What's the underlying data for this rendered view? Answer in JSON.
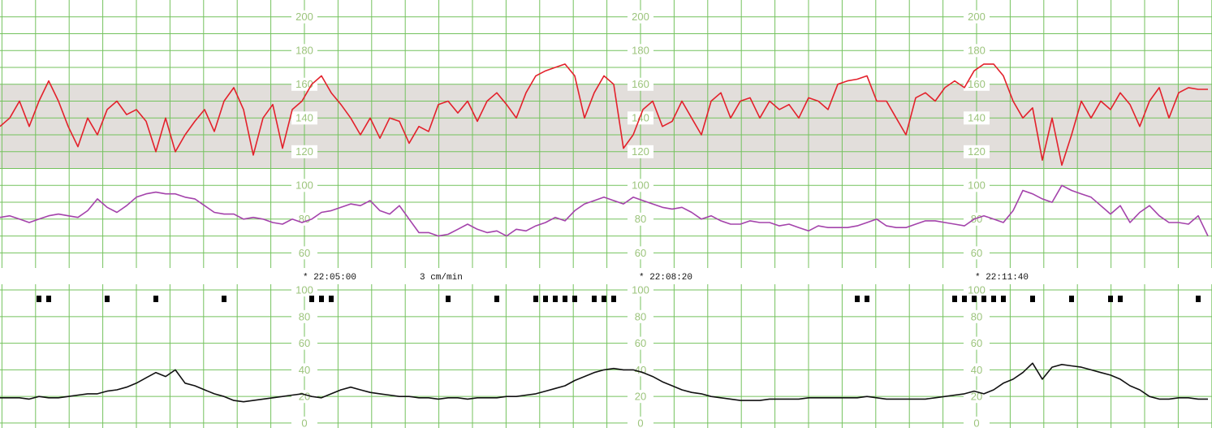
{
  "chart_data": [
    {
      "type": "line",
      "ylim": [
        51,
        210
      ],
      "yticks": [
        60,
        80,
        100,
        120,
        140,
        160,
        180,
        200
      ],
      "grid": true,
      "band": [
        110,
        160
      ],
      "band_color": "#e2dedb",
      "series": [
        {
          "color": "#e3212b",
          "values": [
            135,
            140,
            150,
            135,
            150,
            162,
            150,
            135,
            123,
            140,
            130,
            145,
            150,
            142,
            145,
            138,
            120,
            140,
            120,
            130,
            138,
            145,
            132,
            150,
            158,
            145,
            118,
            140,
            148,
            122,
            145,
            150,
            160,
            165,
            155,
            148,
            140,
            130,
            140,
            128,
            140,
            138,
            125,
            135,
            132,
            148,
            150,
            143,
            150,
            138,
            150,
            155,
            148,
            140,
            155,
            165,
            168,
            170,
            172,
            165,
            140,
            155,
            165,
            160,
            122,
            130,
            145,
            150,
            135,
            138,
            150,
            140,
            130,
            150,
            155,
            140,
            150,
            152,
            140,
            150,
            145,
            148,
            140,
            152,
            150,
            145,
            160,
            162,
            163,
            165,
            150,
            150,
            140,
            130,
            152,
            155,
            150,
            158,
            162,
            158,
            168,
            172,
            172,
            165,
            150,
            140,
            146,
            115,
            140,
            112,
            130,
            150,
            140,
            150,
            145,
            155,
            148,
            135,
            150,
            158,
            140,
            155,
            158,
            157,
            157
          ]
        },
        {
          "color": "#a443ab",
          "values": [
            81,
            82,
            80,
            78,
            80,
            82,
            83,
            82,
            81,
            85,
            92,
            87,
            84,
            88,
            93,
            95,
            96,
            95,
            95,
            93,
            92,
            88,
            84,
            83,
            83,
            80,
            81,
            80,
            78,
            77,
            80,
            78,
            80,
            84,
            85,
            87,
            89,
            88,
            91,
            85,
            83,
            88,
            80,
            72,
            72,
            70,
            71,
            74,
            77,
            74,
            72,
            73,
            70,
            74,
            73,
            76,
            78,
            81,
            79,
            85,
            89,
            91,
            93,
            91,
            89,
            93,
            91,
            89,
            87,
            86,
            87,
            84,
            80,
            82,
            79,
            77,
            77,
            79,
            78,
            78,
            76,
            77,
            75,
            73,
            76,
            75,
            75,
            75,
            76,
            78,
            80,
            76,
            75,
            75,
            77,
            79,
            79,
            78,
            77,
            76,
            80,
            82,
            80,
            78,
            85,
            97,
            95,
            92,
            90,
            100,
            97,
            95,
            93,
            88,
            83,
            88,
            78,
            84,
            88,
            82,
            78,
            78,
            77,
            82,
            70
          ]
        }
      ],
      "annotations": [
        "* 22:05:00",
        "3 cm/min",
        "* 22:08:20",
        "* 22:11:40"
      ]
    },
    {
      "type": "line",
      "ylim": [
        -3.7,
        104.3
      ],
      "yticks": [
        0,
        20,
        40,
        60,
        80,
        100
      ],
      "grid": true,
      "series": [
        {
          "color": "#111111",
          "values": [
            19,
            19,
            19,
            18,
            20,
            19,
            19,
            20,
            21,
            22,
            22,
            24,
            25,
            27,
            30,
            34,
            38,
            35,
            40,
            30,
            28,
            25,
            22,
            20,
            17,
            16,
            17,
            18,
            19,
            20,
            21,
            22,
            20,
            19,
            22,
            25,
            27,
            25,
            23,
            22,
            21,
            20,
            20,
            19,
            19,
            18,
            19,
            19,
            18,
            19,
            19,
            19,
            20,
            20,
            21,
            22,
            24,
            26,
            28,
            32,
            35,
            38,
            40,
            41,
            40,
            40,
            38,
            35,
            31,
            28,
            25,
            23,
            22,
            20,
            19,
            18,
            17,
            17,
            17,
            18,
            18,
            18,
            18,
            19,
            19,
            19,
            19,
            19,
            19,
            20,
            19,
            18,
            18,
            18,
            18,
            18,
            19,
            20,
            21,
            22,
            24,
            22,
            25,
            30,
            33,
            38,
            45,
            33,
            42,
            44,
            43,
            42,
            40,
            38,
            36,
            33,
            28,
            25,
            20,
            18,
            18,
            19,
            19,
            18,
            18
          ]
        }
      ],
      "events": {
        "color": "#000000",
        "values": [
          0,
          0,
          0,
          0,
          1,
          1,
          0,
          0,
          0,
          0,
          0,
          1,
          0,
          0,
          0,
          0,
          1,
          0,
          0,
          0,
          0,
          0,
          0,
          1,
          0,
          0,
          0,
          0,
          0,
          0,
          0,
          0,
          1,
          1,
          1,
          0,
          0,
          0,
          0,
          0,
          0,
          0,
          0,
          0,
          0,
          0,
          1,
          0,
          0,
          0,
          0,
          1,
          0,
          0,
          0,
          1,
          1,
          1,
          1,
          1,
          0,
          1,
          1,
          1,
          0,
          0,
          0,
          0,
          0,
          0,
          0,
          0,
          0,
          0,
          0,
          0,
          0,
          0,
          0,
          0,
          0,
          0,
          0,
          0,
          0,
          0,
          0,
          0,
          1,
          1,
          0,
          0,
          0,
          0,
          0,
          0,
          0,
          0,
          1,
          1,
          1,
          1,
          1,
          1,
          0,
          0,
          1,
          0,
          0,
          0,
          1,
          0,
          0,
          0,
          1,
          1,
          0,
          0,
          0,
          0,
          0,
          0,
          0,
          1,
          0
        ]
      }
    }
  ]
}
